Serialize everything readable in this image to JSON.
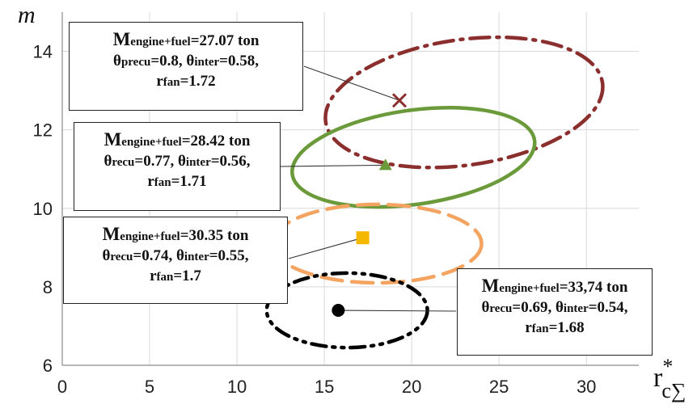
{
  "chart_data": {
    "type": "scatter",
    "ylabel": "m",
    "xlabel": "r",
    "xlabel_sup": "*",
    "xlabel_sub": "c∑",
    "xlim": [
      0,
      33
    ],
    "ylim": [
      6,
      15
    ],
    "xticks": [
      "0",
      "5",
      "10",
      "15",
      "20",
      "25",
      "30"
    ],
    "yticks": [
      "6",
      "8",
      "10",
      "12",
      "14"
    ],
    "grid": "horizontal and vertical",
    "series": [
      {
        "marker": "x",
        "color": "#8B2E2E",
        "line_style": "dash-dot",
        "point": {
          "x": 19.3,
          "y": 12.75
        },
        "region": {
          "cx": 23.0,
          "cy": 12.7,
          "rx": 8.0,
          "ry": 1.6
        }
      },
      {
        "marker": "triangle",
        "color": "#6B9A3A",
        "line_style": "solid",
        "point": {
          "x": 18.5,
          "y": 11.1
        },
        "region": {
          "cx": 20.1,
          "cy": 11.3,
          "rx": 7.0,
          "ry": 1.2
        }
      },
      {
        "marker": "square",
        "color": "#F5B800",
        "line_style": "dashed",
        "region_color": "#F4A460",
        "point": {
          "x": 17.2,
          "y": 9.25
        },
        "region": {
          "cx": 18.0,
          "cy": 9.1,
          "rx": 6.0,
          "ry": 1.0
        }
      },
      {
        "marker": "circle",
        "color": "#000000",
        "line_style": "dash-dot-dot",
        "point": {
          "x": 15.8,
          "y": 7.4
        },
        "region": {
          "cx": 16.3,
          "cy": 7.4,
          "rx": 4.6,
          "ry": 0.95
        }
      }
    ],
    "annotations": [
      {
        "m_label": "M",
        "m_sub": "engine+fuel",
        "m_value": "=27.07 ton",
        "line2_a": "θ",
        "line2_a_sub": "precu",
        "line2_a_val": "=0.8, ",
        "line2_b": "θ",
        "line2_b_sub": "inter",
        "line2_b_val": "=0.58,",
        "line3": "r",
        "line3_sub": "fan",
        "line3_val": "=1.72"
      },
      {
        "m_label": "M",
        "m_sub": "engine+fuel",
        "m_value": "=28.42 ton",
        "line2_a": "θ",
        "line2_a_sub": "recu",
        "line2_a_val": "=0.77, ",
        "line2_b": "θ",
        "line2_b_sub": "inter",
        "line2_b_val": "=0.56,",
        "line3": "r",
        "line3_sub": "fan",
        "line3_val": "=1.71"
      },
      {
        "m_label": "M",
        "m_sub": "engine+fuel",
        "m_value": "=30.35 ton",
        "line2_a": "θ",
        "line2_a_sub": "recu",
        "line2_a_val": "=0.74, ",
        "line2_b": "θ",
        "line2_b_sub": "inter",
        "line2_b_val": "=0.55,",
        "line3": "r",
        "line3_sub": "fan",
        "line3_val": "=1.7"
      },
      {
        "m_label": "M",
        "m_sub": "engine+fuel",
        "m_value": "=33,74 ton",
        "line2_a": "θ",
        "line2_a_sub": "recu",
        "line2_a_val": "=0.69, ",
        "line2_b": "θ",
        "line2_b_sub": "inter",
        "line2_b_val": "=0.54,",
        "line3": "r",
        "line3_sub": "fan",
        "line3_val": "=1.68"
      }
    ]
  }
}
